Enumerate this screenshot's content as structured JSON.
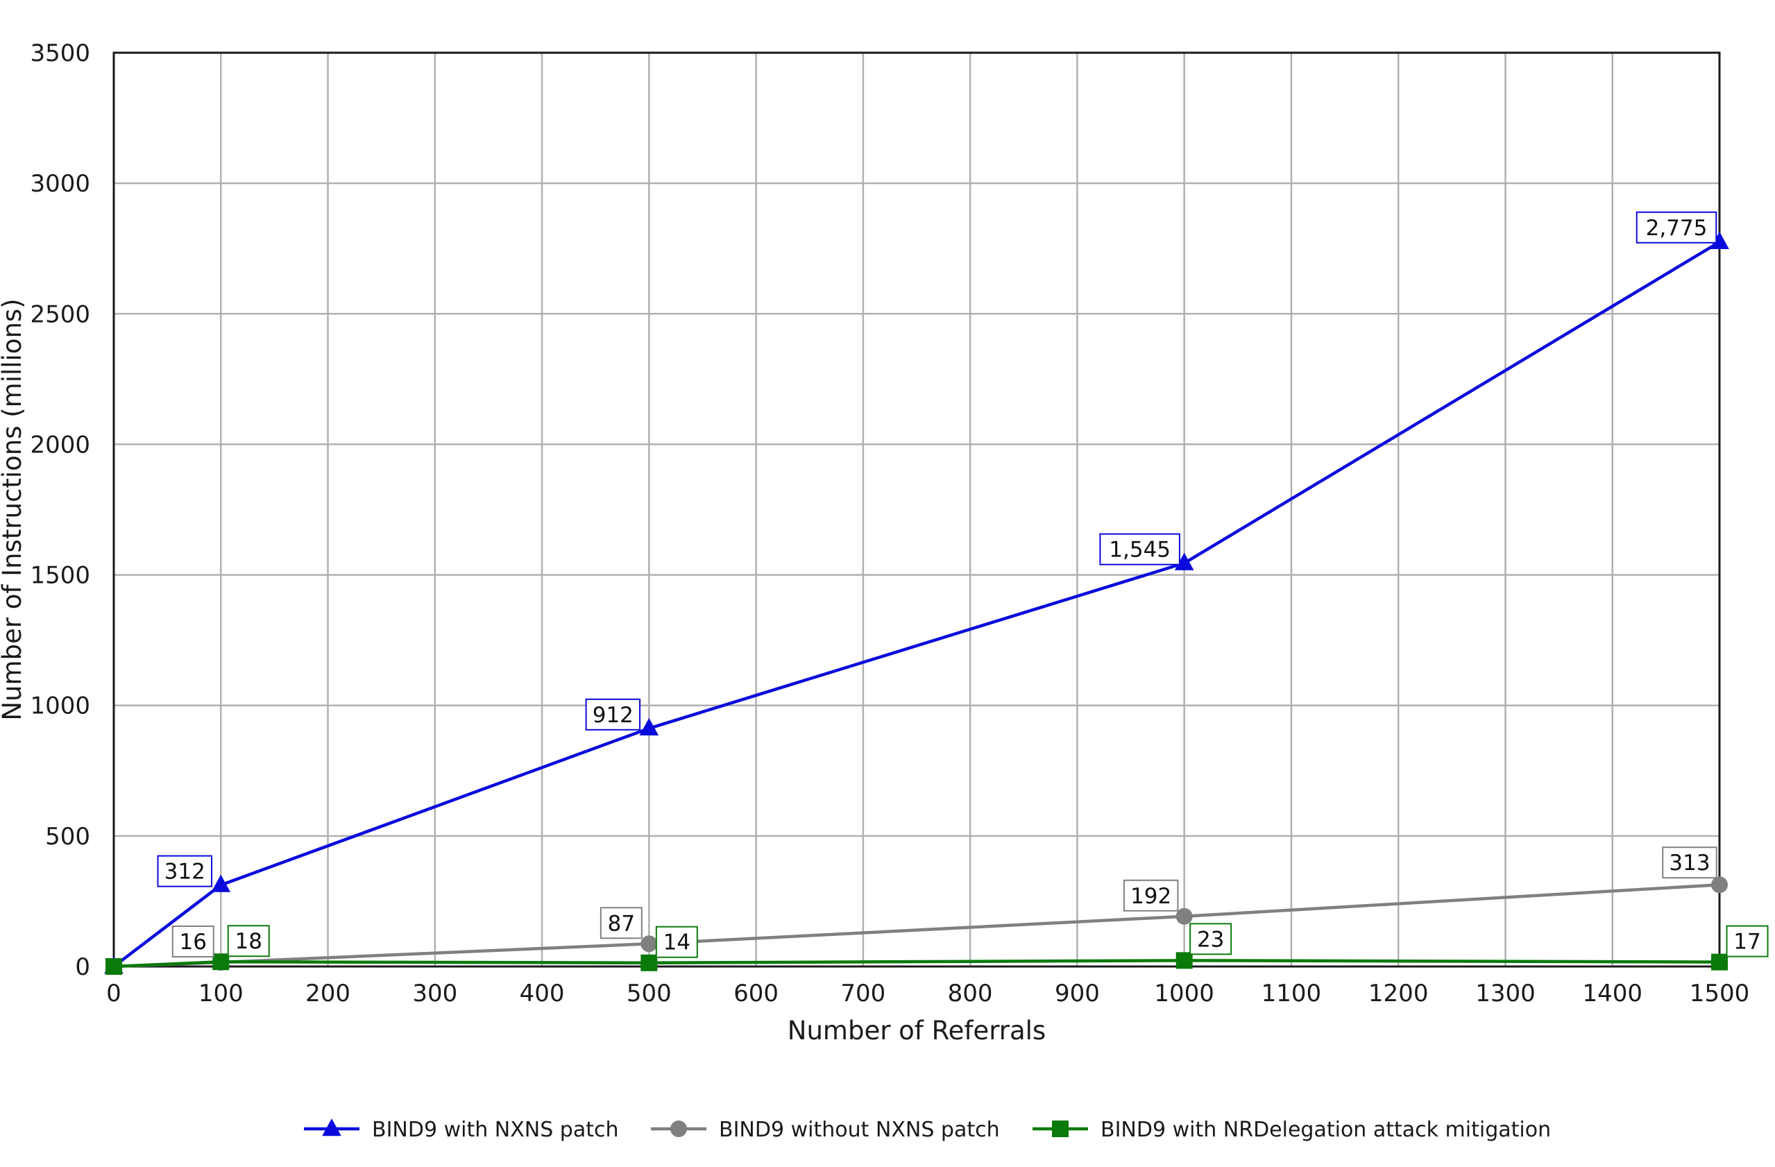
{
  "chart_data": {
    "type": "line",
    "title": "",
    "xlabel": "Number of Referrals",
    "ylabel": "Number of Instructions (millions)",
    "xlim": [
      0,
      1500
    ],
    "ylim": [
      0,
      3500
    ],
    "x_ticks": [
      0,
      100,
      200,
      300,
      400,
      500,
      600,
      700,
      800,
      900,
      1000,
      1100,
      1200,
      1300,
      1400,
      1500
    ],
    "y_ticks": [
      0,
      500,
      1000,
      1500,
      2000,
      2500,
      3000,
      3500
    ],
    "grid": true,
    "legend_position": "bottom",
    "series": [
      {
        "name": "BIND9 with NXNS patch",
        "color": "#0a0adc",
        "marker": "triangle",
        "points": [
          {
            "x": 0,
            "y": 0
          },
          {
            "x": 100,
            "y": 312,
            "label": "312"
          },
          {
            "x": 500,
            "y": 912,
            "label": "912"
          },
          {
            "x": 1000,
            "y": 1545,
            "label": "1,545"
          },
          {
            "x": 1500,
            "y": 2775,
            "label": "2,775"
          }
        ]
      },
      {
        "name": "BIND9 without NXNS patch",
        "color": "#808080",
        "marker": "circle",
        "points": [
          {
            "x": 0,
            "y": 0
          },
          {
            "x": 100,
            "y": 16,
            "label": "16"
          },
          {
            "x": 500,
            "y": 87,
            "label": "87"
          },
          {
            "x": 1000,
            "y": 192,
            "label": "192"
          },
          {
            "x": 1500,
            "y": 313,
            "label": "313"
          }
        ]
      },
      {
        "name": "BIND9 with NRDelegation attack mitigation",
        "color": "#0a7a0a",
        "marker": "square",
        "points": [
          {
            "x": 0,
            "y": 0
          },
          {
            "x": 100,
            "y": 18,
            "label": "18"
          },
          {
            "x": 500,
            "y": 14,
            "label": "14"
          },
          {
            "x": 1000,
            "y": 23,
            "label": "23"
          },
          {
            "x": 1500,
            "y": 17,
            "label": "17"
          }
        ]
      }
    ]
  }
}
